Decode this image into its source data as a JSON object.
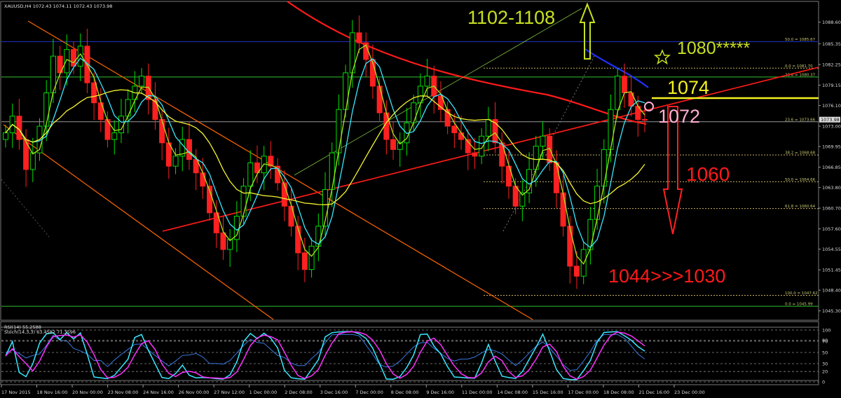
{
  "header": {
    "main": "XAUUSD,H4  1072.43 1074.11 1072.43 1073.98",
    "rsi": "RSI(14) 55.2588",
    "stoch": "Stoch(14,3,3) 63.4582 71.3596"
  },
  "colors": {
    "bull": "#00e000",
    "bear": "#ff2020",
    "cyan": "#38e8ff",
    "yellow": "#f4f430",
    "lime": "#a8e020",
    "magenta": "#ff30ff",
    "orange": "#ff6600",
    "red": "#ff1a1a",
    "blue": "#2030ff",
    "grid": "#5a5a5a"
  },
  "annotations": {
    "target_up": "1102-1108",
    "target_1080": "1080*****",
    "level_1074": "1074",
    "level_1072": "1072",
    "target_1060": "1060",
    "target_low": "1044>>>1030"
  },
  "chart_data": [
    {
      "type": "candlestick",
      "title": "XAUUSD,H4",
      "ohlc_last": {
        "open": 1072.43,
        "high": 1074.11,
        "low": 1072.43,
        "close": 1073.98
      },
      "ylim": [
        1044.0,
        1091.5
      ],
      "y_ticks": [
        1088.6,
        1085.35,
        1082.25,
        1079.15,
        1076.1,
        1073.0,
        1069.95,
        1066.85,
        1063.8,
        1060.7,
        1057.6,
        1054.55,
        1051.45,
        1048.4,
        1045.3
      ],
      "price_marker": "1073.98",
      "x_labels": [
        "17 Nov 2015",
        "18 Nov 16:00",
        "20 Nov 00:00",
        "23 Nov 08:00",
        "24 Nov 16:00",
        "26 Nov 00:00",
        "27 Nov 12:00",
        "1 Dec 00:00",
        "2 Dec 08:00",
        "3 Dec 16:00",
        "7 Dec 00:00",
        "8 Dec 08:00",
        "9 Dec 16:00",
        "11 Dec 00:00",
        "14 Dec 08:00",
        "15 Dec 16:00",
        "17 Dec 00:00",
        "18 Dec 08:00",
        "21 Dec 16:00",
        "23 Dec 00:00"
      ],
      "fib_upper": [
        {
          "label": "50.0 = 1085.67",
          "value": 1085.67
        },
        {
          "label": "0.0 = 1081.70",
          "value": 1081.7
        },
        {
          "label": "23.6 = 1080.37",
          "value": 1080.37
        },
        {
          "label": "23.6 = 1073.66",
          "value": 1073.66
        },
        {
          "label": "38.2 = 1068.68",
          "value": 1068.68
        },
        {
          "label": "50.0 = 1064.66",
          "value": 1064.66
        },
        {
          "label": "61.8 = 1060.64",
          "value": 1060.64
        },
        {
          "label": "100.0 = 1047.62",
          "value": 1047.62
        },
        {
          "label": "0.0 = 1045.99",
          "value": 1045.99
        }
      ],
      "closes": [
        1072.0,
        1074.5,
        1071.0,
        1066.5,
        1069.0,
        1073.0,
        1078.0,
        1083.5,
        1081.0,
        1084.5,
        1082.0,
        1085.0,
        1079.5,
        1076.5,
        1074.0,
        1071.0,
        1072.0,
        1074.5,
        1077.0,
        1079.0,
        1080.5,
        1077.0,
        1074.0,
        1070.5,
        1067.0,
        1068.5,
        1071.0,
        1068.0,
        1066.0,
        1064.0,
        1060.0,
        1057.0,
        1054.5,
        1056.0,
        1059.5,
        1064.0,
        1067.5,
        1066.0,
        1068.5,
        1067.0,
        1064.5,
        1061.0,
        1058.0,
        1054.0,
        1051.5,
        1055.0,
        1058.0,
        1063.5,
        1069.0,
        1075.5,
        1081.0,
        1087.0,
        1085.5,
        1083.0,
        1079.0,
        1075.0,
        1071.0,
        1069.5,
        1070.5,
        1073.5,
        1076.5,
        1079.0,
        1080.5,
        1077.5,
        1075.5,
        1073.0,
        1072.0,
        1071.0,
        1069.0,
        1068.5,
        1071.5,
        1074.0,
        1070.5,
        1067.0,
        1064.0,
        1061.0,
        1063.0,
        1066.5,
        1070.0,
        1071.5,
        1067.5,
        1063.0,
        1058.0,
        1052.0,
        1050.5,
        1054.5,
        1059.0,
        1064.0,
        1069.5,
        1075.5,
        1080.5,
        1078.0,
        1076.0,
        1074.0,
        1073.98
      ],
      "rsi": {
        "level_labels": [
          "70",
          "50",
          "30"
        ],
        "levels": [
          70,
          50,
          30
        ],
        "last": 55.2588
      },
      "stochastic": {
        "level_labels": [
          "100",
          "80",
          "20",
          "0"
        ],
        "levels": [
          100,
          80,
          20,
          0
        ],
        "k_last": 63.4582,
        "d_last": 71.3596
      }
    }
  ]
}
